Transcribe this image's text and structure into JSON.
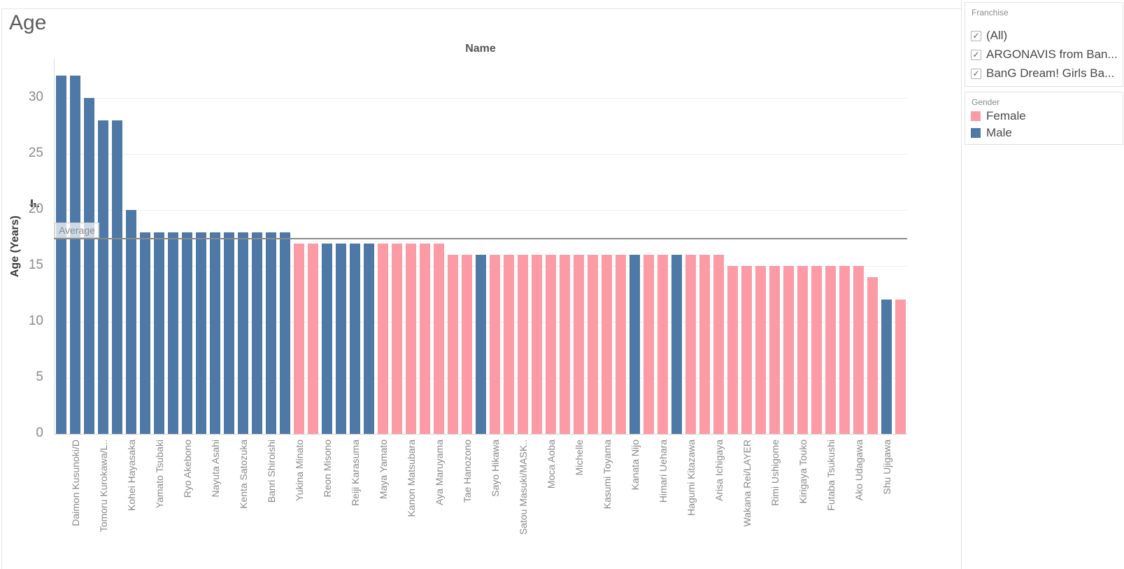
{
  "title": "Age",
  "column_header": "Name",
  "y_axis": {
    "label": "Age (Years)",
    "ticks": [
      0,
      5,
      10,
      15,
      20,
      25,
      30
    ]
  },
  "average_line": {
    "label": "Average",
    "value": 17.43
  },
  "chart_data": {
    "type": "bar",
    "title": "Age",
    "xlabel": "Name",
    "ylabel": "Age (Years)",
    "ylim": [
      0,
      33.6
    ],
    "grid": true,
    "legend_position": "right",
    "colors": {
      "Female": "#fc9ba6",
      "Male": "#4e79a7"
    },
    "average": 17.43,
    "bars": [
      {
        "name": "",
        "age": 32,
        "gender": "Male"
      },
      {
        "name": "Daimon Kusunoki/D",
        "age": 32,
        "gender": "Male"
      },
      {
        "name": "",
        "age": 30,
        "gender": "Male"
      },
      {
        "name": "Tomoru Kurokawa/L..",
        "age": 28,
        "gender": "Male"
      },
      {
        "name": "",
        "age": 28,
        "gender": "Male"
      },
      {
        "name": "Kohei Hayasaka",
        "age": 20,
        "gender": "Male"
      },
      {
        "name": "",
        "age": 18,
        "gender": "Male"
      },
      {
        "name": "Yamato Tsubaki",
        "age": 18,
        "gender": "Male"
      },
      {
        "name": "",
        "age": 18,
        "gender": "Male"
      },
      {
        "name": "Ryo Akebono",
        "age": 18,
        "gender": "Male"
      },
      {
        "name": "",
        "age": 18,
        "gender": "Male"
      },
      {
        "name": "Nayuta Asahi",
        "age": 18,
        "gender": "Male"
      },
      {
        "name": "",
        "age": 18,
        "gender": "Male"
      },
      {
        "name": "Kenta Satozuka",
        "age": 18,
        "gender": "Male"
      },
      {
        "name": "",
        "age": 18,
        "gender": "Male"
      },
      {
        "name": "Banri Shiroishi",
        "age": 18,
        "gender": "Male"
      },
      {
        "name": "",
        "age": 18,
        "gender": "Male"
      },
      {
        "name": "Yukina Minato",
        "age": 17,
        "gender": "Female"
      },
      {
        "name": "",
        "age": 17,
        "gender": "Female"
      },
      {
        "name": "Reon Misono",
        "age": 17,
        "gender": "Male"
      },
      {
        "name": "",
        "age": 17,
        "gender": "Male"
      },
      {
        "name": "Reiji Karasuma",
        "age": 17,
        "gender": "Male"
      },
      {
        "name": "",
        "age": 17,
        "gender": "Male"
      },
      {
        "name": "Maya Yamato",
        "age": 17,
        "gender": "Female"
      },
      {
        "name": "",
        "age": 17,
        "gender": "Female"
      },
      {
        "name": "Kanon Matsubara",
        "age": 17,
        "gender": "Female"
      },
      {
        "name": "",
        "age": 17,
        "gender": "Female"
      },
      {
        "name": "Aya Maruyama",
        "age": 17,
        "gender": "Female"
      },
      {
        "name": "",
        "age": 16,
        "gender": "Female"
      },
      {
        "name": "Tae Hanozono",
        "age": 16,
        "gender": "Female"
      },
      {
        "name": "",
        "age": 16,
        "gender": "Male"
      },
      {
        "name": "Sayo Hikawa",
        "age": 16,
        "gender": "Female"
      },
      {
        "name": "",
        "age": 16,
        "gender": "Female"
      },
      {
        "name": "Satou Masuki/MASK..",
        "age": 16,
        "gender": "Female"
      },
      {
        "name": "",
        "age": 16,
        "gender": "Female"
      },
      {
        "name": "Moca Aoba",
        "age": 16,
        "gender": "Female"
      },
      {
        "name": "",
        "age": 16,
        "gender": "Female"
      },
      {
        "name": "Michelle",
        "age": 16,
        "gender": "Female"
      },
      {
        "name": "",
        "age": 16,
        "gender": "Female"
      },
      {
        "name": "Kasumi Toyama",
        "age": 16,
        "gender": "Female"
      },
      {
        "name": "",
        "age": 16,
        "gender": "Female"
      },
      {
        "name": "Kanata Nijo",
        "age": 16,
        "gender": "Male"
      },
      {
        "name": "",
        "age": 16,
        "gender": "Female"
      },
      {
        "name": "Himari Uehara",
        "age": 16,
        "gender": "Female"
      },
      {
        "name": "",
        "age": 16,
        "gender": "Male"
      },
      {
        "name": "Hagumi Kitazawa",
        "age": 16,
        "gender": "Female"
      },
      {
        "name": "",
        "age": 16,
        "gender": "Female"
      },
      {
        "name": "Arisa Ichigaya",
        "age": 16,
        "gender": "Female"
      },
      {
        "name": "",
        "age": 15,
        "gender": "Female"
      },
      {
        "name": "Wakana Rei/LAYER",
        "age": 15,
        "gender": "Female"
      },
      {
        "name": "",
        "age": 15,
        "gender": "Female"
      },
      {
        "name": "Rimi Ushigome",
        "age": 15,
        "gender": "Female"
      },
      {
        "name": "",
        "age": 15,
        "gender": "Female"
      },
      {
        "name": "Kirigaya Touko",
        "age": 15,
        "gender": "Female"
      },
      {
        "name": "",
        "age": 15,
        "gender": "Female"
      },
      {
        "name": "Futaba Tsukushi",
        "age": 15,
        "gender": "Female"
      },
      {
        "name": "",
        "age": 15,
        "gender": "Female"
      },
      {
        "name": "Ako Udagawa",
        "age": 15,
        "gender": "Female"
      },
      {
        "name": "",
        "age": 14,
        "gender": "Female"
      },
      {
        "name": "Shu Ujigawa",
        "age": 12,
        "gender": "Male"
      },
      {
        "name": "",
        "age": 12,
        "gender": "Female"
      }
    ]
  },
  "sidebar": {
    "franchise_filter": {
      "title": "Franchise",
      "items": [
        {
          "label": "(All)",
          "checked": true
        },
        {
          "label": "ARGONAVIS from Ban...",
          "checked": true
        },
        {
          "label": "BanG Dream! Girls Ba...",
          "checked": true
        }
      ]
    },
    "gender_legend": {
      "title": "Gender",
      "items": [
        {
          "label": "Female",
          "color": "#fc9ba6"
        },
        {
          "label": "Male",
          "color": "#4e79a7"
        }
      ]
    }
  }
}
